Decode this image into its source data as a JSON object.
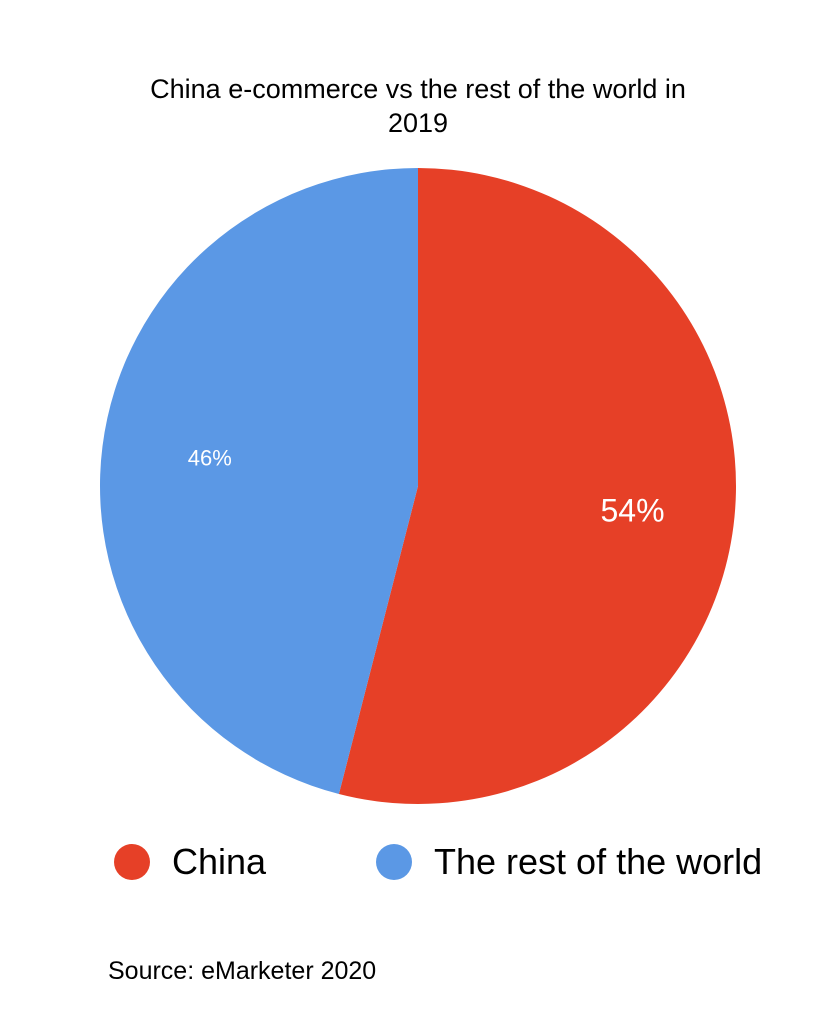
{
  "chart_data": {
    "type": "pie",
    "title_lines": [
      "China e-commerce vs the rest of the world in",
      "2019"
    ],
    "slices": [
      {
        "name": "China",
        "value": 54,
        "label": "54%",
        "color": "#e64027"
      },
      {
        "name": "The rest of the world",
        "value": 46,
        "label": "46%",
        "color": "#5b98e5"
      }
    ],
    "legend_placement": "bottom",
    "source": "Source: eMarketer 2020"
  }
}
